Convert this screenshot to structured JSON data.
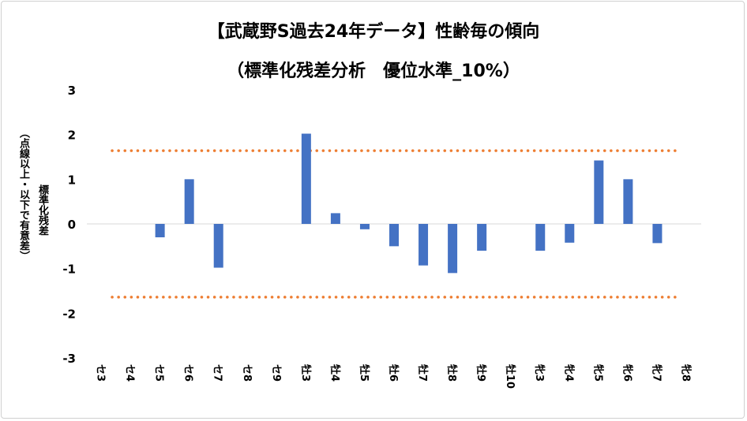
{
  "chart_data": {
    "type": "bar",
    "title": "【武蔵野S過去24年データ】性齢毎の傾向",
    "subtitle": "（標準化残差分析　優位水準_10%）",
    "ylabel_line1": "標準化残差",
    "ylabel_line2": "（点線以上・以下で有意差）",
    "ylim": [
      -3,
      3
    ],
    "yticks": [
      "3",
      "2",
      "1",
      "0",
      "-1",
      "-2",
      "-3"
    ],
    "categories": [
      "セ3",
      "セ4",
      "セ5",
      "セ6",
      "セ7",
      "セ8",
      "セ9",
      "牡3",
      "牡4",
      "牡5",
      "牡6",
      "牡7",
      "牡8",
      "牡9",
      "牡10",
      "牝3",
      "牝4",
      "牝5",
      "牝6",
      "牝7",
      "牝8"
    ],
    "values": [
      0,
      0,
      -0.3,
      1.0,
      -0.98,
      0,
      0,
      2.02,
      0.24,
      -0.12,
      -0.5,
      -0.93,
      -1.1,
      -0.6,
      0,
      -0.6,
      -0.42,
      1.42,
      1.0,
      -0.43,
      0
    ],
    "thresholds": [
      1.64,
      -1.64
    ],
    "bar_color": "#4472c4",
    "threshold_color": "#ed7d31",
    "grid": false
  }
}
